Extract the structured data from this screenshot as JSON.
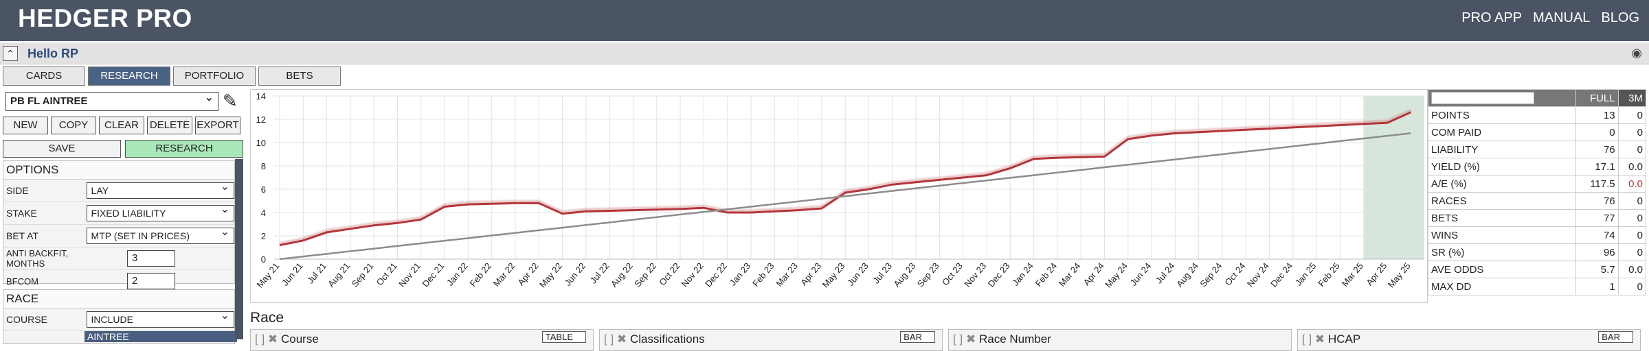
{
  "header": {
    "title": "HEDGER PRO",
    "nav": [
      "PRO APP",
      "MANUAL",
      "BLOG"
    ]
  },
  "user_bar": {
    "greeting": "Hello RP"
  },
  "tabs": [
    "CARDS",
    "RESEARCH",
    "PORTFOLIO",
    "BETS"
  ],
  "active_tab": "RESEARCH",
  "sidebar": {
    "system": "PB FL AINTREE",
    "actions": [
      "NEW",
      "COPY",
      "CLEAR",
      "DELETE",
      "EXPORT"
    ],
    "save": "SAVE",
    "research": "RESEARCH",
    "options": {
      "title": "OPTIONS",
      "fields": [
        {
          "label": "SIDE",
          "value": "LAY"
        },
        {
          "label": "STAKE",
          "value": "FIXED LIABILITY"
        },
        {
          "label": "BET AT",
          "value": "MTP (SET IN PRICES)"
        },
        {
          "label": "ANTI BACKFIT, MONTHS",
          "number": 3
        },
        {
          "label": "BFCOM",
          "number": 2
        }
      ]
    },
    "race": {
      "title": "RACE",
      "fields": [
        {
          "label": "COURSE",
          "value": "INCLUDE"
        }
      ],
      "selected": [
        "AINTREE"
      ]
    }
  },
  "chart_data": {
    "type": "line",
    "categories": [
      "May 21",
      "Jun 21",
      "Jul 21",
      "Aug 21",
      "Sep 21",
      "Oct 21",
      "Nov 21",
      "Dec 21",
      "Jan 22",
      "Feb 22",
      "Mar 22",
      "Apr 22",
      "May 22",
      "Jun 22",
      "Jul 22",
      "Aug 22",
      "Sep 22",
      "Oct 22",
      "Nov 22",
      "Dec 22",
      "Jan 23",
      "Feb 23",
      "Mar 23",
      "Apr 23",
      "May 23",
      "Jun 23",
      "Jul 23",
      "Aug 23",
      "Sep 23",
      "Oct 23",
      "Nov 23",
      "Dec 23",
      "Jan 24",
      "Feb 24",
      "Mar 24",
      "Apr 24",
      "May 24",
      "Jun 24",
      "Jul 24",
      "Aug 24",
      "Sep 24",
      "Oct 24",
      "Nov 24",
      "Dec 24",
      "Jan 25",
      "Feb 25",
      "Mar 25",
      "Apr 25",
      "May 25"
    ],
    "series": [
      {
        "color": "#b5343a",
        "values": [
          1.2,
          1.6,
          2.3,
          2.6,
          2.9,
          3.1,
          3.4,
          4.5,
          4.7,
          4.75,
          4.8,
          4.8,
          3.9,
          4.1,
          4.15,
          4.2,
          4.25,
          4.3,
          4.4,
          4.0,
          4.0,
          4.1,
          4.2,
          4.35,
          5.7,
          6.0,
          6.4,
          6.6,
          6.8,
          7.0,
          7.2,
          7.8,
          8.6,
          8.7,
          8.75,
          8.8,
          10.3,
          10.6,
          10.8,
          10.9,
          11.0,
          11.1,
          11.2,
          11.3,
          11.4,
          11.5,
          11.6,
          11.7,
          12.6
        ]
      },
      {
        "color": "#8c8c8c",
        "values": [
          0,
          0.23,
          0.45,
          0.68,
          0.9,
          1.13,
          1.35,
          1.58,
          1.8,
          2.03,
          2.25,
          2.48,
          2.7,
          2.93,
          3.15,
          3.38,
          3.6,
          3.83,
          4.05,
          4.28,
          4.5,
          4.73,
          4.95,
          5.18,
          5.4,
          5.63,
          5.85,
          6.08,
          6.3,
          6.53,
          6.75,
          6.98,
          7.2,
          7.43,
          7.65,
          7.88,
          8.1,
          8.33,
          8.55,
          8.78,
          9.0,
          9.23,
          9.45,
          9.68,
          9.9,
          10.13,
          10.35,
          10.58,
          10.8
        ]
      }
    ],
    "ylim": [
      0,
      14
    ],
    "yticks": [
      0,
      2,
      4,
      6,
      8,
      10,
      12,
      14
    ],
    "grid": true,
    "shade": [
      "Mar 25",
      "May 25"
    ],
    "shade_color": "#d6e6da"
  },
  "stats": {
    "columns": [
      "FULL",
      "3M"
    ],
    "rows": [
      {
        "label": "POINTS",
        "full": "13",
        "m3": "0"
      },
      {
        "label": "COM PAID",
        "full": "0",
        "m3": "0"
      },
      {
        "label": "LIABILITY",
        "full": "76",
        "m3": "0"
      },
      {
        "label": "YIELD (%)",
        "full": "17.1",
        "m3": "0.0"
      },
      {
        "label": "A/E (%)",
        "full": "117.5",
        "m3": "0.0",
        "m3_color": "#c0392b"
      },
      {
        "label": "RACES",
        "full": "76",
        "m3": "0"
      },
      {
        "label": "BETS",
        "full": "77",
        "m3": "0"
      },
      {
        "label": "WINS",
        "full": "74",
        "m3": "0"
      },
      {
        "label": "SR (%)",
        "full": "96",
        "m3": "0"
      },
      {
        "label": "AVE ODDS",
        "full": "5.7",
        "m3": "0.0"
      },
      {
        "label": "MAX DD",
        "full": "1",
        "m3": "0"
      }
    ]
  },
  "race_section": {
    "title": "Race",
    "panels": [
      {
        "title": "Course",
        "view": "TABLE"
      },
      {
        "title": "Classifications",
        "view": "BAR"
      },
      {
        "title": "Race Number"
      },
      {
        "title": "HCAP",
        "view": "BAR"
      }
    ]
  }
}
